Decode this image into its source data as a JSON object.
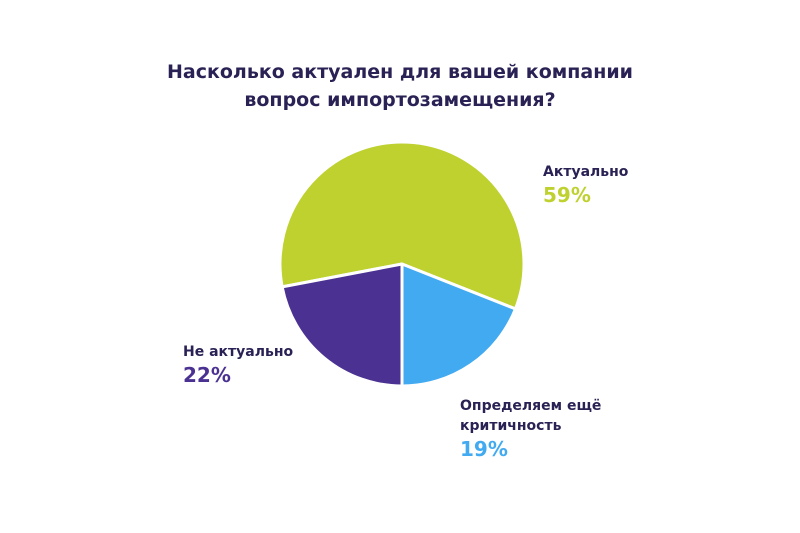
{
  "chart_data": {
    "type": "pie",
    "title_lines": [
      "Насколько актуален для вашей компании",
      "вопрос импортозамещения?"
    ],
    "slices": [
      {
        "label": "Актуально",
        "value": 59,
        "value_label": "59%",
        "color": "#bed12f"
      },
      {
        "label": "Определяем ещё критичность",
        "value": 19,
        "value_label": "19%",
        "color": "#41aaf0"
      },
      {
        "label": "Не актуально",
        "value": 22,
        "value_label": "22%",
        "color": "#4b3292"
      }
    ],
    "legend": "none"
  }
}
